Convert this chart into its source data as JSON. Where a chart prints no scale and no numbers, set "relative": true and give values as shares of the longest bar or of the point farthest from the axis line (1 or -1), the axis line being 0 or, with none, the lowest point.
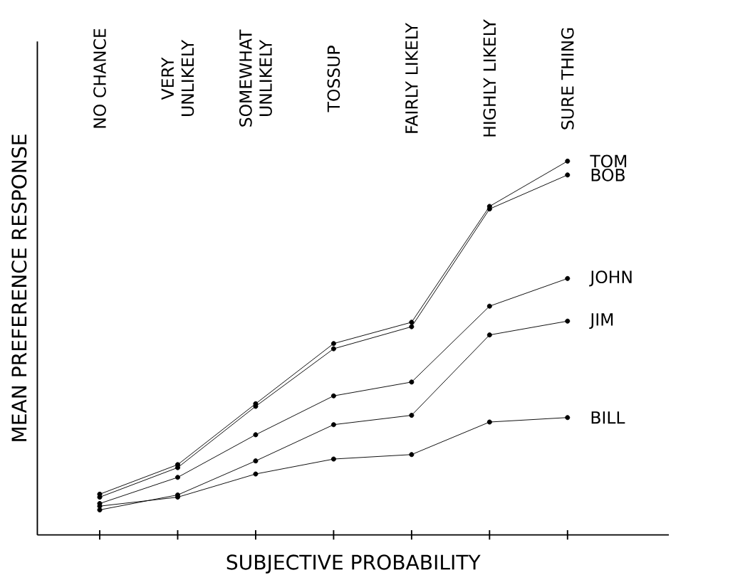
{
  "chart_data": {
    "type": "line",
    "relative": true,
    "xlabel": "SUBJECTIVE PROBABILITY",
    "ylabel": "MEAN PREFERENCE RESPONSE",
    "marker": "circle",
    "line_style": "solid",
    "categories": [
      "NO CHANCE",
      "VERY UNLIKELY",
      "SOMEWHAT UNLIKELY",
      "TOSSUP",
      "FAIRLY LIKELY",
      "HIGHLY LIKELY",
      "SURE THING"
    ],
    "series": [
      {
        "name": "TOM",
        "color": "#000000",
        "values": [
          0.109,
          0.188,
          0.351,
          0.512,
          0.569,
          0.879,
          1
        ]
      },
      {
        "name": "BOB",
        "color": "#000000",
        "values": [
          0.101,
          0.18,
          0.344,
          0.498,
          0.557,
          0.872,
          0.963
        ]
      },
      {
        "name": "JOHN",
        "color": "#000000",
        "values": [
          0.084,
          0.154,
          0.268,
          0.372,
          0.409,
          0.612,
          0.686
        ]
      },
      {
        "name": "JIM",
        "color": "#000000",
        "values": [
          0.067,
          0.107,
          0.198,
          0.295,
          0.32,
          0.535,
          0.572
        ]
      },
      {
        "name": "BILL",
        "color": "#000000",
        "values": [
          0.077,
          0.101,
          0.163,
          0.203,
          0.215,
          0.302,
          0.314
        ]
      }
    ]
  }
}
